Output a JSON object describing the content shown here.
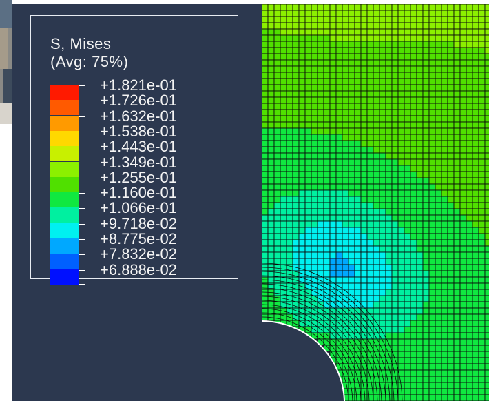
{
  "legend": {
    "title": "S, Mises",
    "subtitle": "(Avg: 75%)",
    "entries": [
      {
        "label": "+1.821e-01",
        "color": "#ff1a00"
      },
      {
        "label": "+1.726e-01",
        "color": "#ff5a00"
      },
      {
        "label": "+1.632e-01",
        "color": "#ff9a00"
      },
      {
        "label": "+1.538e-01",
        "color": "#ffd800"
      },
      {
        "label": "+1.443e-01",
        "color": "#c8f000"
      },
      {
        "label": "+1.349e-01",
        "color": "#8cf000"
      },
      {
        "label": "+1.255e-01",
        "color": "#50e000"
      },
      {
        "label": "+1.160e-01",
        "color": "#10e840"
      },
      {
        "label": "+1.066e-01",
        "color": "#00f0a0"
      },
      {
        "label": "+9.718e-02",
        "color": "#00f0f0"
      },
      {
        "label": "+8.775e-02",
        "color": "#00a8ff"
      },
      {
        "label": "+7.832e-02",
        "color": "#0060ff"
      },
      {
        "label": "+6.888e-02",
        "color": "#0010ff"
      }
    ]
  },
  "colors": {
    "background": "#2c384f",
    "mesh_line": "#0a0a0a",
    "hole_edge": "#ffffff"
  }
}
